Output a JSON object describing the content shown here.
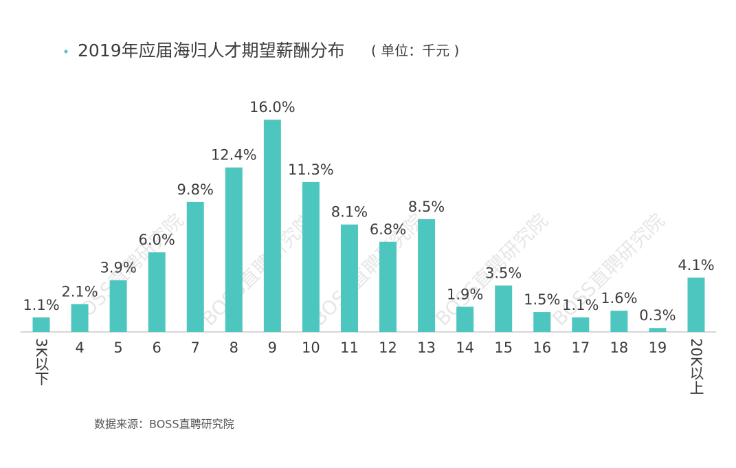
{
  "chart_data": {
    "type": "bar",
    "title": "2019年应届海归人才期望薪酬分布",
    "subtitle": "( 单位：千元 )",
    "source": "数据来源：BOSS直聘研究院",
    "watermark": "BOSS直聘研究院",
    "categories": [
      "3K以下",
      "4",
      "5",
      "6",
      "7",
      "8",
      "9",
      "10",
      "11",
      "12",
      "13",
      "14",
      "15",
      "16",
      "17",
      "18",
      "19",
      "20K以上"
    ],
    "values": [
      1.1,
      2.1,
      3.9,
      6.0,
      9.8,
      12.4,
      16.0,
      11.3,
      8.1,
      6.8,
      8.5,
      1.9,
      3.5,
      1.5,
      1.1,
      1.6,
      0.3,
      4.1
    ],
    "value_labels": [
      "1.1%",
      "2.1%",
      "3.9%",
      "6.0%",
      "9.8%",
      "12.4%",
      "16.0%",
      "11.3%",
      "8.1%",
      "6.8%",
      "8.5%",
      "1.9%",
      "3.5%",
      "1.5%",
      "1.1%",
      "1.6%",
      "0.3%",
      "4.1%"
    ],
    "color": "#4dc6bf"
  }
}
